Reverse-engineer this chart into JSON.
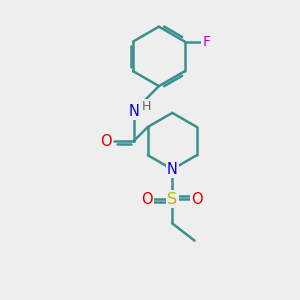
{
  "background_color": "#eeeeee",
  "bond_color": "#3a9090",
  "bond_width": 1.8,
  "nitrogen_color": "#0000ee",
  "oxygen_color": "#dd0000",
  "sulfur_color": "#bbbb00",
  "fluorine_color": "#cc00cc",
  "figsize": [
    3.0,
    3.0
  ],
  "dpi": 100,
  "xlim": [
    0,
    10
  ],
  "ylim": [
    0,
    10
  ]
}
